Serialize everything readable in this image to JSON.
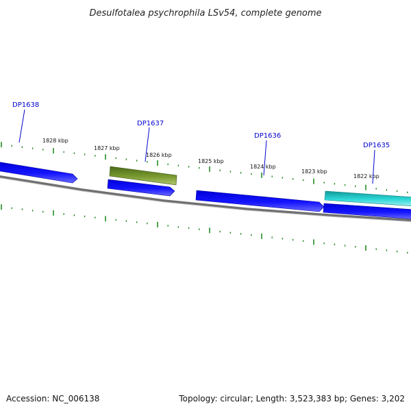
{
  "title": "Desulfotalea psychrophila LSv54, complete genome",
  "footer": {
    "accession": "Accession: NC_006138",
    "summary": "Topology: circular; Length: 3,523,383 bp; Genes: 3,202"
  },
  "colors": {
    "forward_gene": "#1010e0",
    "reverse_gene": "#1010e0",
    "olive_gene": "#6b8e23",
    "cyan_gene": "#20c8c8",
    "backbone": "#808080",
    "tick": "#228b22",
    "gene_label": "#0000cc"
  },
  "kbp_labels": [
    "1828 kbp",
    "1827 kbp",
    "1826 kbp",
    "1825 kbp",
    "1824 kbp",
    "1823 kbp",
    "1822 kbp"
  ],
  "genes": [
    {
      "label": "DP1638",
      "color": "#1010e0"
    },
    {
      "label": "DP1637",
      "color": "#6b8e23"
    },
    {
      "label": "DP1636",
      "color": "#1010e0"
    },
    {
      "label": "DP1635",
      "color": "#20c8c8"
    }
  ]
}
